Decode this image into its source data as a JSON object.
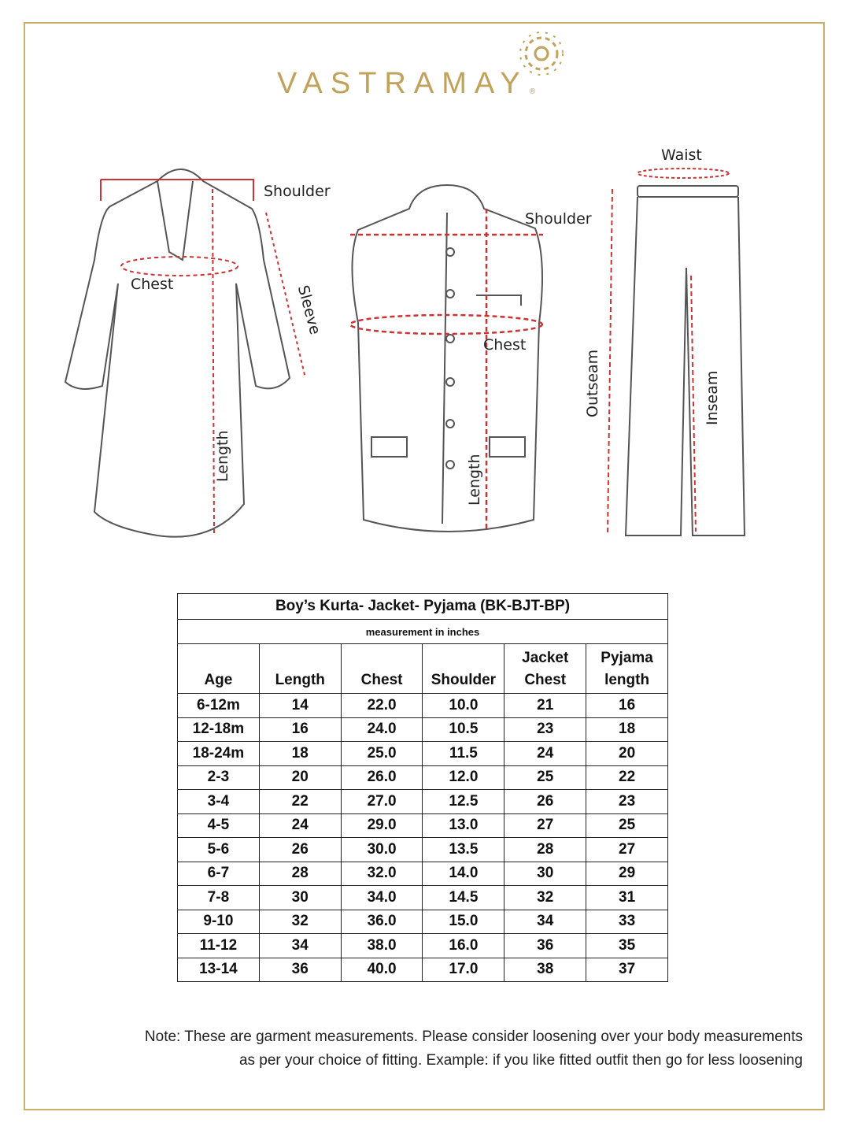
{
  "brand": {
    "name": "VASTRAMAY",
    "registered": "®",
    "color": "#c2a25a"
  },
  "diagram_labels": {
    "kurta": {
      "shoulder": "Shoulder",
      "chest": "Chest",
      "sleeve": "Sleeve",
      "length": "Length"
    },
    "jacket": {
      "shoulder": "Shoulder",
      "chest": "Chest",
      "length": "Length"
    },
    "pyjama": {
      "waist": "Waist",
      "outseam": "Outseam",
      "inseam": "Inseam"
    }
  },
  "table": {
    "title": "Boy’s Kurta- Jacket- Pyjama (BK-BJT-BP)",
    "subtitle": "measurement in inches",
    "headers": [
      "Age",
      "Length",
      "Chest",
      "Shoulder",
      "Jacket  Chest",
      "Pyjama length"
    ],
    "rows": [
      [
        "6-12m",
        "14",
        "22.0",
        "10.0",
        "21",
        "16"
      ],
      [
        "12-18m",
        "16",
        "24.0",
        "10.5",
        "23",
        "18"
      ],
      [
        "18-24m",
        "18",
        "25.0",
        "11.5",
        "24",
        "20"
      ],
      [
        "2-3",
        "20",
        "26.0",
        "12.0",
        "25",
        "22"
      ],
      [
        "3-4",
        "22",
        "27.0",
        "12.5",
        "26",
        "23"
      ],
      [
        "4-5",
        "24",
        "29.0",
        "13.0",
        "27",
        "25"
      ],
      [
        "5-6",
        "26",
        "30.0",
        "13.5",
        "28",
        "27"
      ],
      [
        "6-7",
        "28",
        "32.0",
        "14.0",
        "30",
        "29"
      ],
      [
        "7-8",
        "30",
        "34.0",
        "14.5",
        "32",
        "31"
      ],
      [
        "9-10",
        "32",
        "36.0",
        "15.0",
        "34",
        "33"
      ],
      [
        "11-12",
        "34",
        "38.0",
        "16.0",
        "36",
        "35"
      ],
      [
        "13-14",
        "36",
        "40.0",
        "17.0",
        "38",
        "37"
      ]
    ]
  },
  "note": {
    "line1": "Note: These are garment measurements. Please consider loosening over your body measurements",
    "line2": "as per your choice of fitting. Example: if you like fitted outfit then go for less loosening"
  }
}
